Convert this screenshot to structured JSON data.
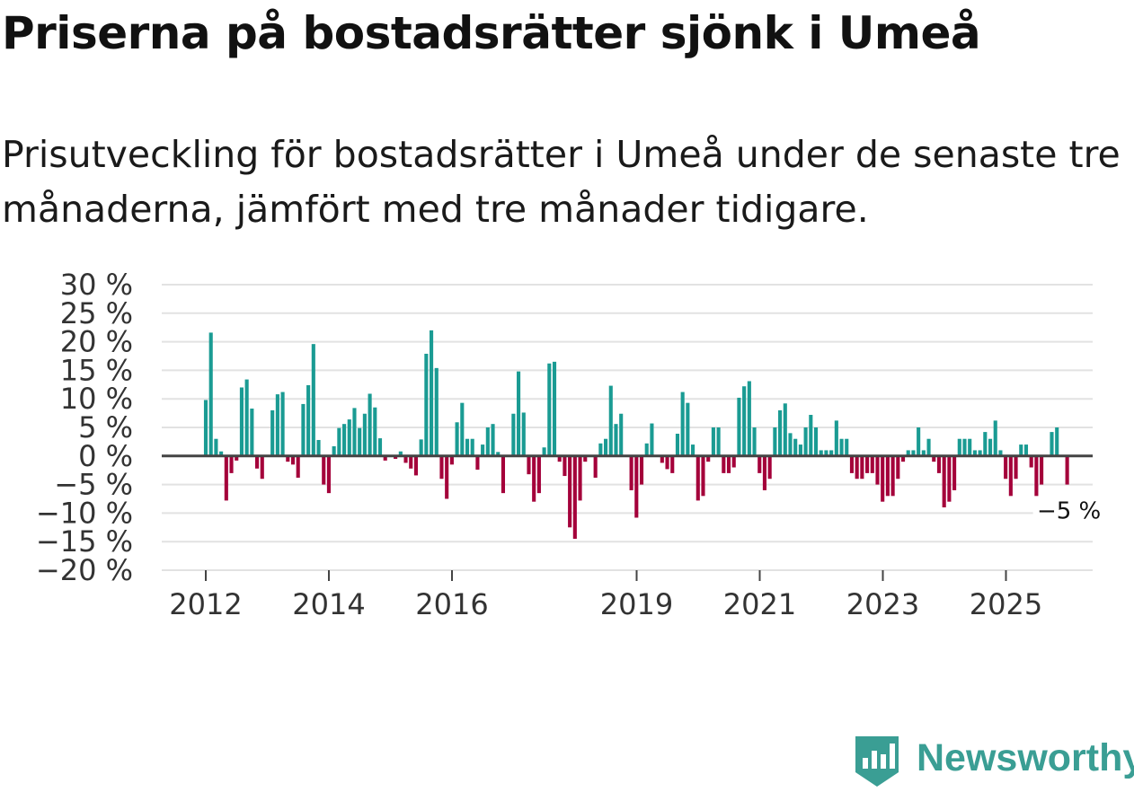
{
  "title": "Priserna på bostadsrätter sjönk i Umeå",
  "subtitle": "Prisutveckling för bostadsrätter i Umeå under de senaste tre månaderna, jämfört med tre månader tidigare.",
  "brand": {
    "name": "Newsworthy",
    "color": "#3a9e94"
  },
  "colors": {
    "positive": "#1a9b93",
    "negative": "#a4003a",
    "grid": "#e2e2e2",
    "zero": "#444444"
  },
  "chart_data": {
    "type": "bar",
    "title": "Priserna på bostadsrätter sjönk i Umeå",
    "xlabel": "",
    "ylabel": "",
    "ylim": [
      -20,
      30
    ],
    "y_ticks": [
      30,
      25,
      20,
      15,
      10,
      5,
      0,
      -5,
      -10,
      -15,
      -20
    ],
    "y_tick_labels": [
      "30 %",
      "25 %",
      "20 %",
      "15 %",
      "10 %",
      "5 %",
      "0 %",
      "−5 %",
      "−10 %",
      "−15 %",
      "−20 %"
    ],
    "x_start": 2012.0,
    "x_step": 0.0833,
    "x_ticks": [
      2012,
      2014,
      2016,
      2019,
      2021,
      2023,
      2025
    ],
    "x_tick_labels": [
      "2012",
      "2014",
      "2016",
      "2019",
      "2021",
      "2023",
      "2025"
    ],
    "values": [
      9.8,
      21.6,
      3.0,
      0.8,
      -7.8,
      -3.0,
      -0.8,
      12.0,
      13.4,
      8.3,
      -2.2,
      -4.0,
      0.0,
      8.0,
      10.8,
      11.2,
      -1.0,
      -1.5,
      -3.8,
      9.1,
      12.4,
      19.6,
      2.8,
      -5.0,
      -6.5,
      1.7,
      4.9,
      5.6,
      6.4,
      8.4,
      4.9,
      7.4,
      10.9,
      8.5,
      3.1,
      -0.8,
      0.0,
      -0.5,
      0.8,
      -1.2,
      -2.2,
      -3.4,
      2.9,
      17.9,
      22.0,
      15.4,
      -4.0,
      -7.5,
      -1.5,
      5.9,
      9.3,
      3.0,
      3.0,
      -2.4,
      2.0,
      5.0,
      5.6,
      0.7,
      -6.5,
      0.0,
      7.4,
      14.8,
      7.6,
      -3.2,
      -8.0,
      -6.5,
      1.5,
      16.2,
      16.5,
      -1.0,
      -3.5,
      -12.5,
      -14.5,
      -7.8,
      -1.0,
      0.0,
      -3.8,
      2.2,
      3.0,
      12.3,
      5.6,
      7.4,
      0.0,
      -6.0,
      -10.8,
      -5.0,
      2.2,
      5.7,
      0.0,
      -1.2,
      -2.3,
      -3.0,
      3.9,
      11.2,
      9.3,
      2.0,
      -7.8,
      -7.0,
      -1.0,
      5.0,
      5.0,
      -3.0,
      -3.0,
      -2.0,
      10.2,
      12.2,
      13.1,
      5.0,
      -3.0,
      -6.0,
      -4.0,
      5.0,
      8.0,
      9.2,
      4.0,
      3.0,
      2.0,
      5.0,
      7.2,
      5.0,
      1.0,
      1.0,
      1.0,
      6.2,
      3.0,
      3.0,
      -3.0,
      -4.0,
      -4.0,
      -3.0,
      -3.0,
      -5.0,
      -8.0,
      -7.0,
      -7.0,
      -4.0,
      -1.0,
      1.0,
      1.0,
      5.0,
      1.0,
      3.0,
      -1.0,
      -3.0,
      -9.0,
      -8.0,
      -6.0,
      3.0,
      3.0,
      3.0,
      1.0,
      1.0,
      4.2,
      3.0,
      6.2,
      1.0,
      -4.0,
      -7.0,
      -4.0,
      2.0,
      2.0,
      -2.0,
      -7.0,
      -5.0,
      0.0,
      4.2,
      5.0,
      0.0,
      -5.0
    ],
    "annotations": [
      {
        "text": "−5 %",
        "x_index": 168,
        "value": -5.0
      }
    ]
  }
}
